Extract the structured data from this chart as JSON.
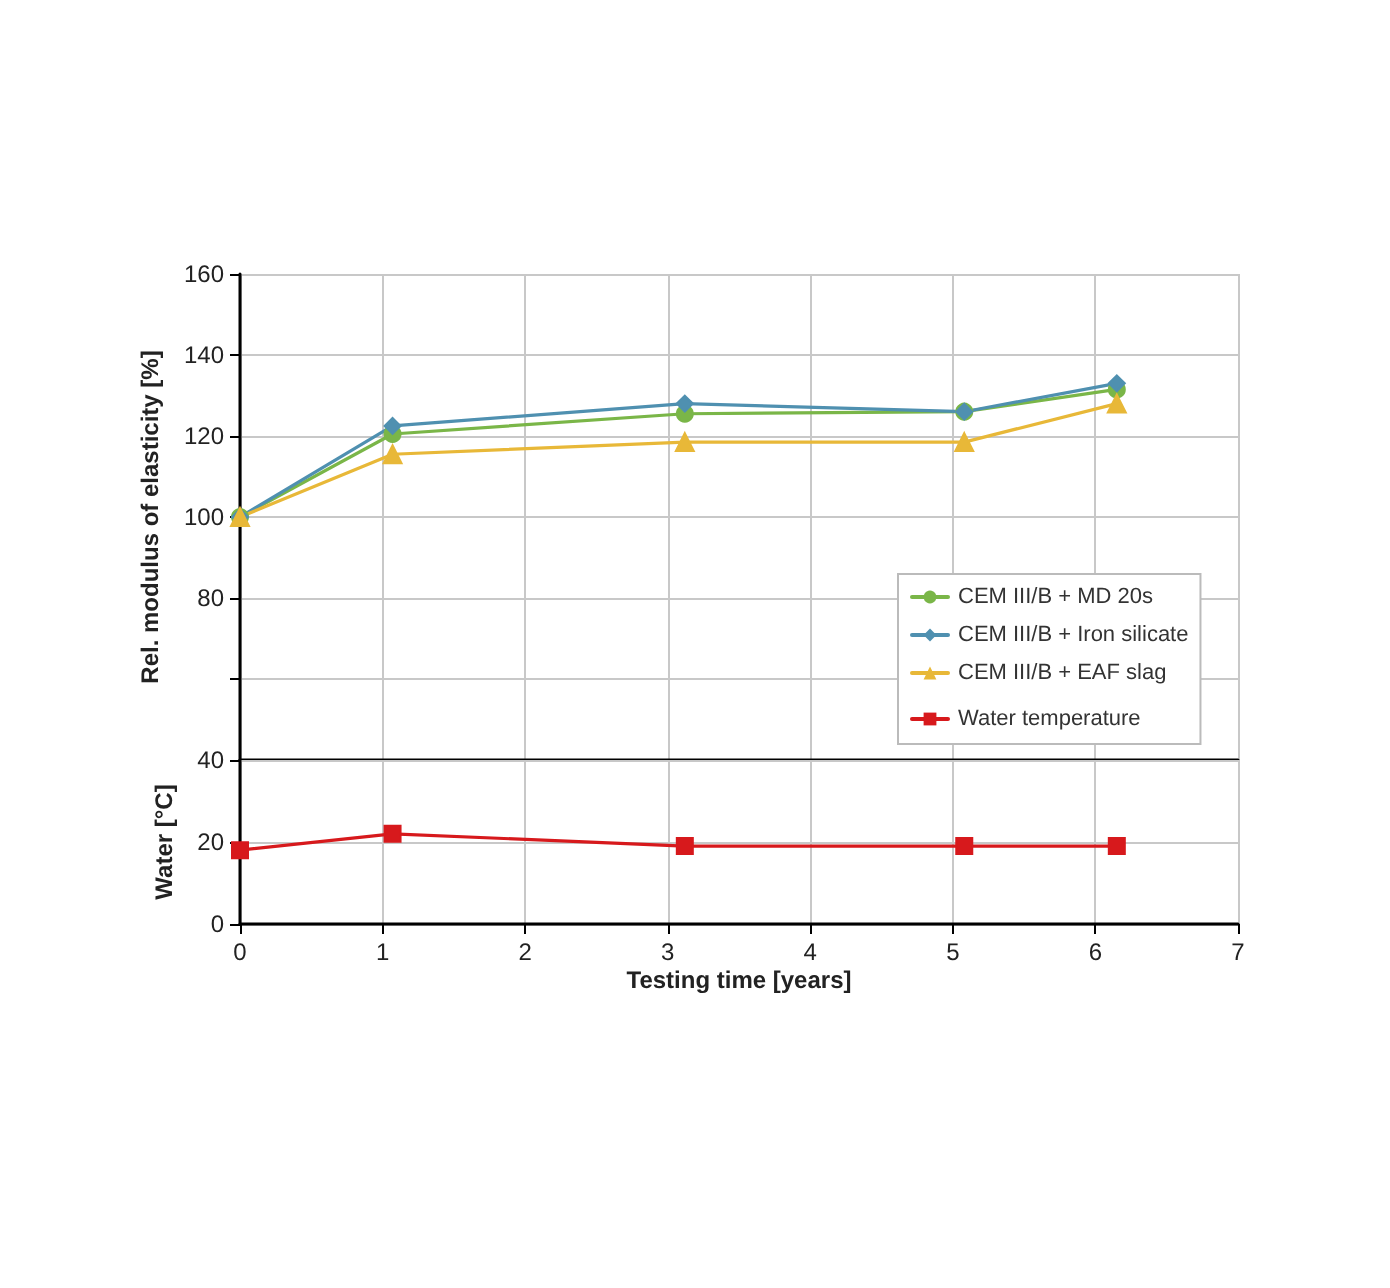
{
  "chart_data": [
    {
      "type": "line",
      "ylabel": "Rel. modulus of elasticity [%]",
      "xlim": [
        0,
        7
      ],
      "xticks": [
        0,
        1,
        2,
        3,
        4,
        5,
        6,
        7
      ],
      "ylim": [
        40,
        160
      ],
      "yticks": [
        {
          "value": 40,
          "label": null
        },
        {
          "value": 60,
          "label": null
        },
        80,
        100,
        120,
        140,
        160
      ],
      "tick_labels": "y",
      "grid": true,
      "legend": "bottom right",
      "series": [
        {
          "name": "CEM III/B + MD 20s",
          "color": "#7ab648",
          "marker": "circle",
          "x": [
            0,
            1.07,
            3.12,
            5.08,
            6.15
          ],
          "values": [
            100,
            120.5,
            125.5,
            126,
            131.5
          ]
        },
        {
          "name": "CEM III/B + Iron silicate",
          "color": "#4f90b0",
          "marker": "diamond",
          "x": [
            0,
            1.07,
            3.12,
            5.08,
            6.15
          ],
          "values": [
            100,
            122.5,
            128,
            126,
            133
          ]
        },
        {
          "name": "CEM III/B + EAF slag",
          "color": "#e8b838",
          "marker": "triangle",
          "x": [
            0,
            1.07,
            3.12,
            5.08,
            6.15
          ],
          "values": [
            100,
            115.5,
            118.5,
            118.5,
            128
          ]
        }
      ]
    },
    {
      "type": "line",
      "xlabel": "Testing time [years]",
      "ylabel": "Water [°C]",
      "xlim": [
        0,
        7
      ],
      "xticks": [
        0,
        1,
        2,
        3,
        4,
        5,
        6,
        7
      ],
      "ylim": [
        0,
        40
      ],
      "yticks": [
        0,
        20,
        40
      ],
      "grid": true,
      "legend": "top right",
      "series": [
        {
          "name": "Water temperature",
          "color": "#d7191c",
          "marker": "square",
          "x": [
            0,
            1.07,
            3.12,
            5.08,
            6.15
          ],
          "values": [
            18,
            22,
            19,
            19,
            19
          ]
        }
      ]
    }
  ]
}
